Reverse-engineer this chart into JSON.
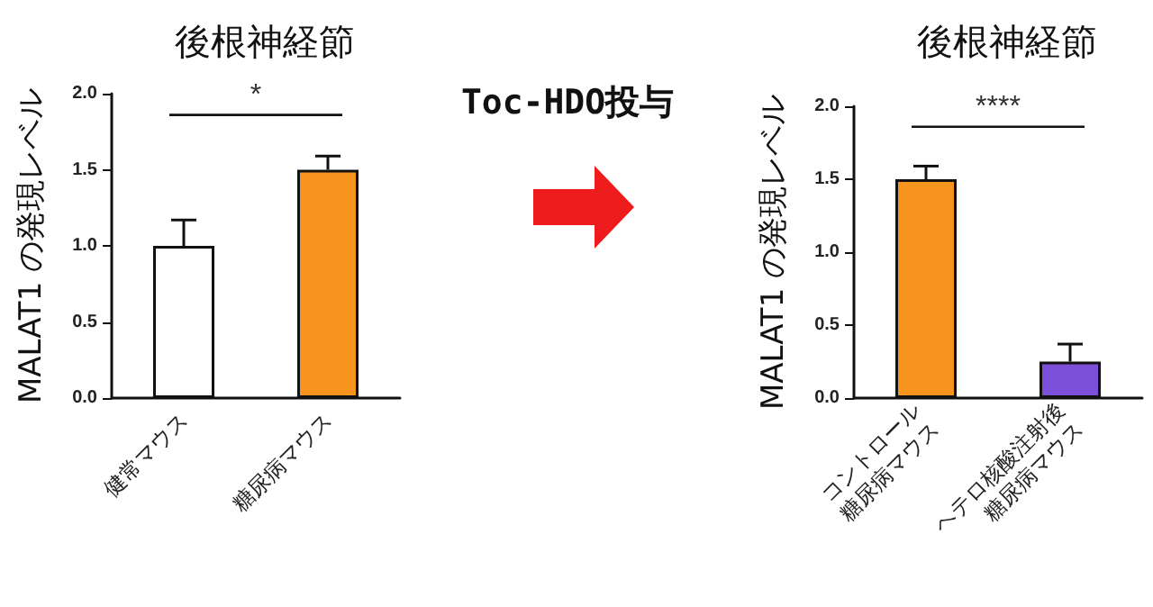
{
  "chart_data": [
    {
      "type": "bar",
      "title": "後根神経節",
      "ylabel": "MALAT1 の発現レベル",
      "categories": [
        "健常マウス",
        "糖尿病マウス"
      ],
      "values": [
        1.0,
        1.5
      ],
      "colors": [
        "#ffffff",
        "#f7941d"
      ],
      "errors": [
        [
          1.0,
          1.17
        ],
        [
          1.5,
          1.59
        ]
      ],
      "ylim": [
        0,
        2
      ],
      "yticks": [
        {
          "value": 0,
          "label": "0.0"
        },
        {
          "value": 0.5,
          "label": "0.5"
        },
        {
          "value": 1,
          "label": "1.0"
        },
        {
          "value": 1.5,
          "label": "1.5"
        },
        {
          "value": 2,
          "label": "2.0"
        }
      ],
      "annotations": [
        "*"
      ]
    },
    {
      "type": "other",
      "title": "Toc-HDO投与"
    },
    {
      "type": "bar",
      "title": "後根神経節",
      "ylabel": "MALAT1 の発現レベル",
      "categories": [
        "コントロール\n糖尿病マウス",
        "ヘテロ核酸注射後\n糖尿病マウス"
      ],
      "values": [
        1.5,
        0.25
      ],
      "colors": [
        "#f7941d",
        "#7b4fd8"
      ],
      "errors": [
        [
          1.5,
          1.59
        ],
        [
          0.25,
          0.37
        ]
      ],
      "ylim": [
        0,
        2
      ],
      "yticks": [
        {
          "value": 0,
          "label": "0.0"
        },
        {
          "value": 0.5,
          "label": "0.5"
        },
        {
          "value": 1,
          "label": "1.0"
        },
        {
          "value": 1.5,
          "label": "1.5"
        },
        {
          "value": 2,
          "label": "2.0"
        }
      ],
      "annotations": [
        "****"
      ]
    }
  ]
}
